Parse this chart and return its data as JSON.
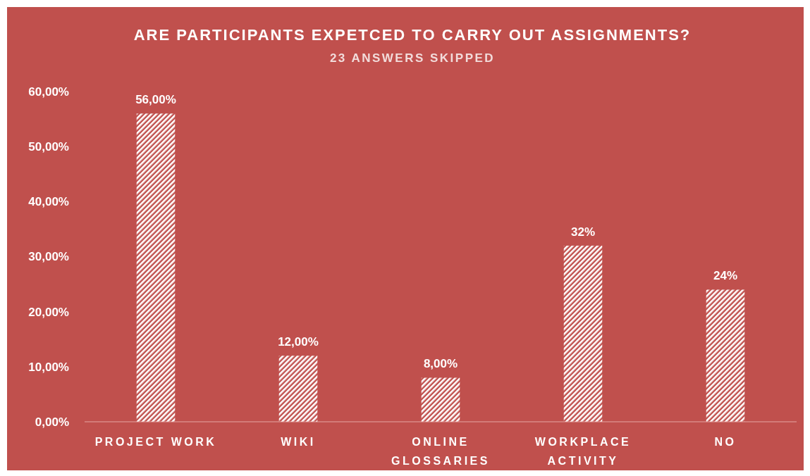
{
  "chart_data": {
    "type": "bar",
    "title": "ARE PARTICIPANTS EXPETCED TO CARRY OUT ASSIGNMENTS?",
    "subtitle": "23 ANSWERS SKIPPED",
    "categories": [
      "PROJECT WORK",
      "WIKI",
      "ONLINE GLOSSARIES",
      "WORKPLACE ACTIVITY",
      "NO"
    ],
    "values": [
      56,
      12,
      8,
      32,
      24
    ],
    "value_labels": [
      "56,00%",
      "12,00%",
      "8,00%",
      "32%",
      "24%"
    ],
    "color": "#ffffff",
    "ylim": [
      0,
      60
    ],
    "yticks": [
      {
        "value": 0,
        "label": "0,00%"
      },
      {
        "value": 10,
        "label": "10,00%"
      },
      {
        "value": 20,
        "label": "20,00%"
      },
      {
        "value": 30,
        "label": "30,00%"
      },
      {
        "value": 40,
        "label": "40,00%"
      },
      {
        "value": 50,
        "label": "50,00%"
      },
      {
        "value": 60,
        "label": "60,00%"
      }
    ],
    "grid": false
  }
}
